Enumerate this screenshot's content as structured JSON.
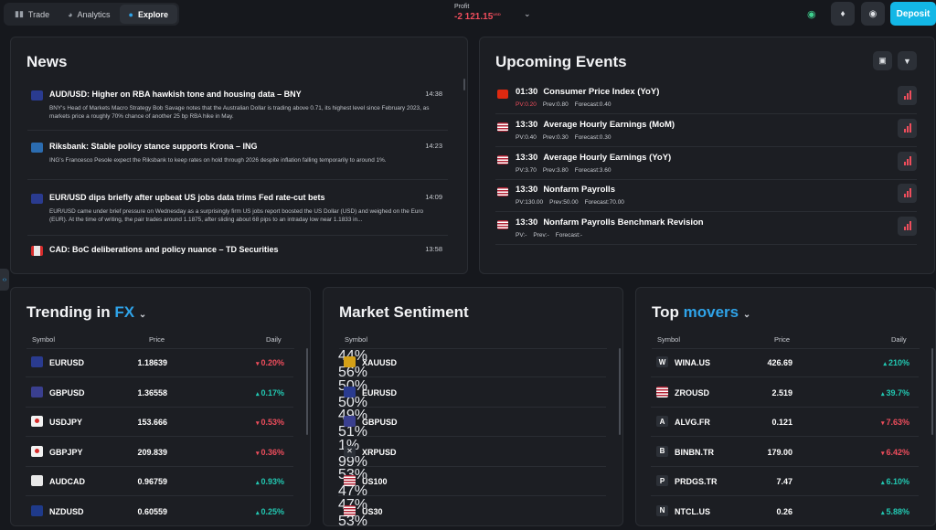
{
  "tabs": [
    {
      "label": "Trade",
      "icon": "bar-chart-icon"
    },
    {
      "label": "Analytics",
      "icon": "pie-chart-icon"
    },
    {
      "label": "Explore",
      "icon": "compass-icon",
      "active": true
    }
  ],
  "profit": {
    "label": "Profit",
    "value": "-2 121.15",
    "currency": "USD"
  },
  "deposit_label": "Deposit",
  "news": {
    "title": "News",
    "items": [
      {
        "flag": "au",
        "headline": "AUD/USD: Higher on RBA hawkish tone and housing data – BNY",
        "time": "14:38",
        "body": "BNY's Head of Markets Macro Strategy Bob Savage notes that the Australian Dollar is trading above 0.71, its highest level since February 2023, as markets price a roughly 70% chance of another 25 bp RBA hike in May."
      },
      {
        "flag": "se",
        "headline": "Riksbank: Stable policy stance supports Krona – ING",
        "time": "14:23",
        "body": "ING's Francesco Pesole expect the Riksbank to keep rates on hold through 2026 despite inflation falling temporarily to around 1%."
      },
      {
        "flag": "eu",
        "headline": "EUR/USD dips briefly after upbeat US jobs data trims Fed rate-cut bets",
        "time": "14:09",
        "body": "EUR/USD came under brief pressure on Wednesday as a surprisingly firm US jobs report boosted the US Dollar (USD) and weighed on the Euro (EUR). At the time of writing, the pair trades around 1.1875, after sliding about 68 pips to an intraday low near 1.1833 in..."
      },
      {
        "flag": "ca",
        "headline": "CAD: BoC deliberations and policy nuance – TD Securities",
        "time": "13:58",
        "body": ""
      }
    ]
  },
  "events": {
    "title": "Upcoming Events",
    "items": [
      {
        "flag": "cn",
        "time": "01:30",
        "name": "Consumer Price Index (YoY)",
        "pv": "PV:0.20",
        "prev": "Prev:0.80",
        "forecast": "Forecast:0.40",
        "pv_neg": true
      },
      {
        "flag": "us",
        "time": "13:30",
        "name": "Average Hourly Earnings (MoM)",
        "pv": "PV:0.40",
        "prev": "Prev:0.30",
        "forecast": "Forecast:0.30",
        "pv_neg": false
      },
      {
        "flag": "us",
        "time": "13:30",
        "name": "Average Hourly Earnings (YoY)",
        "pv": "PV:3.70",
        "prev": "Prev:3.80",
        "forecast": "Forecast:3.60",
        "pv_neg": false
      },
      {
        "flag": "us",
        "time": "13:30",
        "name": "Nonfarm Payrolls",
        "pv": "PV:130.00",
        "prev": "Prev:50.00",
        "forecast": "Forecast:70.00",
        "pv_neg": false
      },
      {
        "flag": "us",
        "time": "13:30",
        "name": "Nonfarm Payrolls Benchmark Revision",
        "pv": "PV:-",
        "prev": "Prev:-",
        "forecast": "Forecast:-",
        "pv_neg": false
      }
    ]
  },
  "trending": {
    "title_prefix": "Trending in",
    "title_accent": "FX",
    "col_symbol": "Symbol",
    "col_price": "Price",
    "col_daily": "Daily",
    "rows": [
      {
        "symbol": "EURUSD",
        "price": "1.18639",
        "change": "0.20%",
        "dir": "down",
        "icon": "eu"
      },
      {
        "symbol": "GBPUSD",
        "price": "1.36558",
        "change": "0.17%",
        "dir": "up",
        "icon": "gb"
      },
      {
        "symbol": "USDJPY",
        "price": "153.666",
        "change": "0.53%",
        "dir": "down",
        "icon": "jp"
      },
      {
        "symbol": "GBPJPY",
        "price": "209.839",
        "change": "0.36%",
        "dir": "down",
        "icon": "jp"
      },
      {
        "symbol": "AUDCAD",
        "price": "0.96759",
        "change": "0.93%",
        "dir": "up",
        "icon": "ca"
      },
      {
        "symbol": "NZDUSD",
        "price": "0.60559",
        "change": "0.25%",
        "dir": "up",
        "icon": "nz"
      }
    ]
  },
  "sentiment": {
    "title": "Market Sentiment",
    "col_symbol": "Symbol",
    "rows": [
      {
        "symbol": "XAUUSD",
        "sell": 44,
        "buy": 56,
        "sell_label": "44%",
        "buy_label": "56%",
        "icon": "gold"
      },
      {
        "symbol": "EURUSD",
        "sell": 50,
        "buy": 50,
        "sell_label": "50%",
        "buy_label": "50%",
        "icon": "eu"
      },
      {
        "symbol": "GBPUSD",
        "sell": 49,
        "buy": 51,
        "sell_label": "49%",
        "buy_label": "51%",
        "icon": "gb"
      },
      {
        "symbol": "XRPUSD",
        "sell": 1,
        "buy": 99,
        "sell_label": "1%",
        "buy_label": "99%",
        "icon": "x"
      },
      {
        "symbol": "US100",
        "sell": 53,
        "buy": 47,
        "sell_label": "53%",
        "buy_label": "47%",
        "icon": "us"
      },
      {
        "symbol": "US30",
        "sell": 47,
        "buy": 53,
        "sell_label": "47%",
        "buy_label": "53%",
        "icon": "us"
      }
    ]
  },
  "movers": {
    "title_prefix": "Top",
    "title_accent": "movers",
    "col_symbol": "Symbol",
    "col_price": "Price",
    "col_daily": "Daily",
    "rows": [
      {
        "symbol": "WINA.US",
        "price": "426.69",
        "change": "210%",
        "dir": "up",
        "letter": "W"
      },
      {
        "symbol": "ZROUSD",
        "price": "2.519",
        "change": "39.7%",
        "dir": "up",
        "letter": ""
      },
      {
        "symbol": "ALVG.FR",
        "price": "0.121",
        "change": "7.63%",
        "dir": "down",
        "letter": "A"
      },
      {
        "symbol": "BINBN.TR",
        "price": "179.00",
        "change": "6.42%",
        "dir": "down",
        "letter": "B"
      },
      {
        "symbol": "PRDGS.TR",
        "price": "7.47",
        "change": "6.10%",
        "dir": "up",
        "letter": "P"
      },
      {
        "symbol": "NTCL.US",
        "price": "0.26",
        "change": "5.88%",
        "dir": "up",
        "letter": "N"
      }
    ]
  },
  "colors": {
    "accent": "#2fa3e8",
    "deposit": "#13b7e6",
    "up": "#22c8b2",
    "down": "#ef4d5c"
  }
}
